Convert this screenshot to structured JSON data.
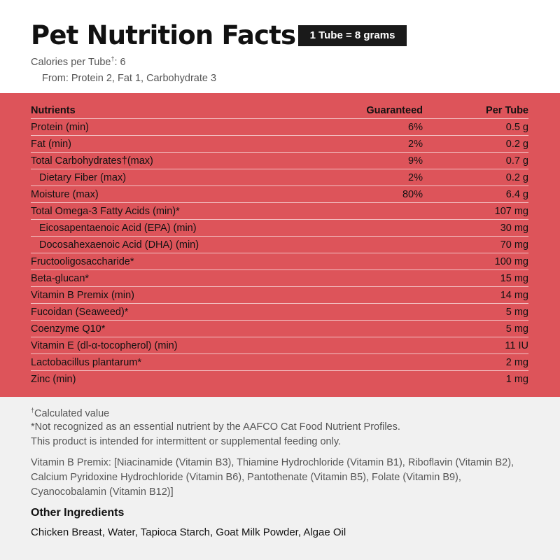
{
  "header": {
    "title": "Pet Nutrition Facts",
    "serving": "1 Tube = 8 grams",
    "calories_label": "Calories per Tube",
    "calories_marker": "†",
    "calories_value": ": 6",
    "from_line": "From: Protein 2, Fat 1, Carbohydrate 3"
  },
  "table": {
    "columns": [
      "Nutrients",
      "Guaranteed",
      "Per Tube"
    ],
    "rows": [
      {
        "name": "Protein (min)",
        "guaranteed": "6%",
        "per_tube": "0.5 g",
        "indent": false
      },
      {
        "name": "Fat (min)",
        "guaranteed": "2%",
        "per_tube": "0.2 g",
        "indent": false
      },
      {
        "name": "Total Carbohydrates†(max)",
        "guaranteed": "9%",
        "per_tube": "0.7 g",
        "indent": false
      },
      {
        "name": "Dietary Fiber (max)",
        "guaranteed": "2%",
        "per_tube": "0.2 g",
        "indent": true
      },
      {
        "name": "Moisture (max)",
        "guaranteed": "80%",
        "per_tube": "6.4 g",
        "indent": false
      },
      {
        "name": "Total Omega-3 Fatty Acids (min)*",
        "guaranteed": "",
        "per_tube": "107 mg",
        "indent": false
      },
      {
        "name": "Eicosapentaenoic Acid (EPA) (min)",
        "guaranteed": "",
        "per_tube": "30 mg",
        "indent": true
      },
      {
        "name": "Docosahexaenoic Acid (DHA) (min)",
        "guaranteed": "",
        "per_tube": "70 mg",
        "indent": true
      },
      {
        "name": "Fructooligosaccharide*",
        "guaranteed": "",
        "per_tube": "100 mg",
        "indent": false
      },
      {
        "name": "Beta-glucan*",
        "guaranteed": "",
        "per_tube": "15 mg",
        "indent": false
      },
      {
        "name": "Vitamin B Premix (min)",
        "guaranteed": "",
        "per_tube": "14 mg",
        "indent": false
      },
      {
        "name": "Fucoidan (Seaweed)*",
        "guaranteed": "",
        "per_tube": "5 mg",
        "indent": false
      },
      {
        "name": "Coenzyme Q10*",
        "guaranteed": "",
        "per_tube": "5 mg",
        "indent": false
      },
      {
        "name": "Vitamin E (dl-α-tocopherol) (min)",
        "guaranteed": "",
        "per_tube": "11 IU",
        "indent": false
      },
      {
        "name": "Lactobacillus plantarum*",
        "guaranteed": "",
        "per_tube": "2 mg",
        "indent": false
      },
      {
        "name": "Zinc (min)",
        "guaranteed": "",
        "per_tube": "1 mg",
        "indent": false
      }
    ]
  },
  "footnotes": {
    "calculated_marker": "†",
    "calculated": "Calculated value",
    "aafco": "*Not recognized as an essential nutrient by the AAFCO Cat Food Nutrient Profiles.",
    "intermittent": "This product is intended for intermittent or supplemental feeding only.",
    "premix_lines": [
      "Vitamin B Premix: [Niacinamide (Vitamin B3), Thiamine Hydrochloride (Vitamin B1), Riboflavin (Vitamin B2),",
      "Calcium Pyridoxine Hydrochloride (Vitamin B6), Pantothenate (Vitamin B5), Folate (Vitamin B9),",
      "Cyanocobalamin (Vitamin B12)]"
    ]
  },
  "other_ingredients": {
    "heading": "Other Ingredients",
    "list": "Chicken Breast, Water, Tapioca Starch, Goat Milk Powder, Algae Oil"
  },
  "colors": {
    "panel": "#dd545a",
    "badge": "#1a1a1a",
    "footer": "#f1f1f1"
  }
}
